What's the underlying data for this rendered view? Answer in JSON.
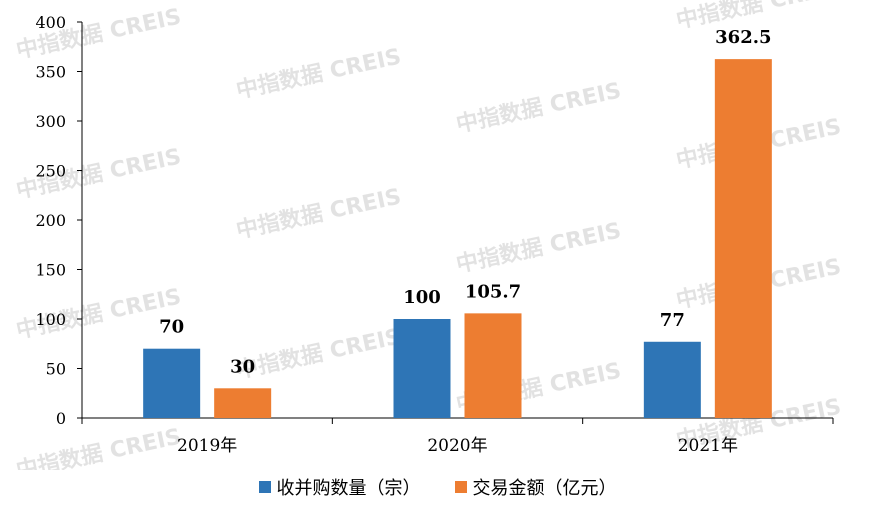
{
  "watermark_text": "中指数据 CREIS",
  "chart_data": {
    "type": "bar",
    "categories": [
      "2019年",
      "2020年",
      "2021年"
    ],
    "series": [
      {
        "name": "收并购数量（宗）",
        "values": [
          70,
          100,
          77
        ],
        "labels": [
          "70",
          "100",
          "77"
        ],
        "color": "#2e75b6"
      },
      {
        "name": "交易金额（亿元）",
        "values": [
          30,
          105.7,
          362.5
        ],
        "labels": [
          "30",
          "105.7",
          "362.5"
        ],
        "color": "#ed7d31"
      }
    ],
    "ylim": [
      0,
      400
    ],
    "yticks": [
      "0",
      "50",
      "100",
      "150",
      "200",
      "250",
      "300",
      "350",
      "400"
    ],
    "title": "",
    "xlabel": "",
    "ylabel": "",
    "grid": false,
    "legend_position": "bottom"
  }
}
